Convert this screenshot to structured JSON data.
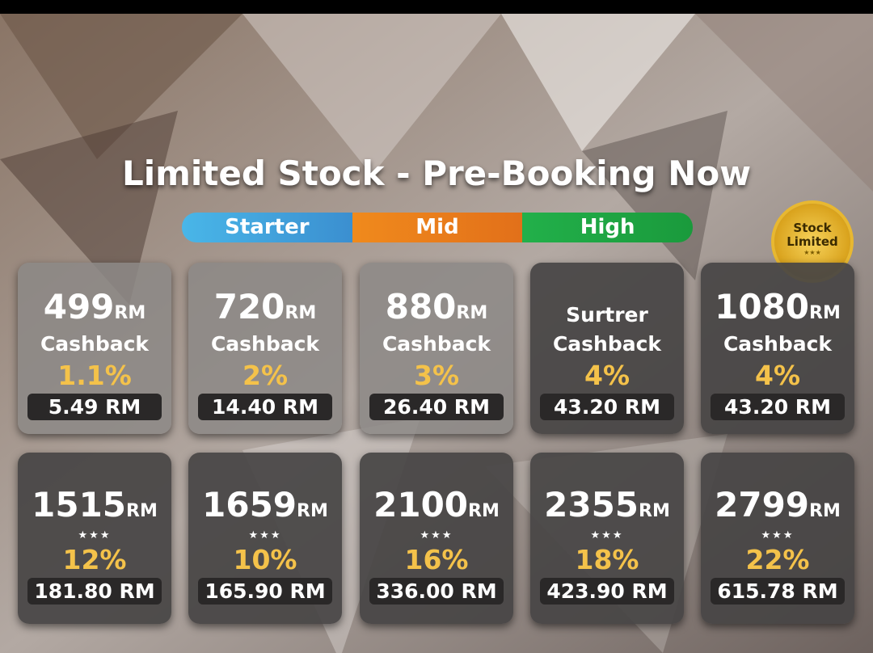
{
  "title": "Limited Stock - Pre-Booking Now",
  "tiers": [
    "Starter",
    "Mid",
    "High"
  ],
  "badge": {
    "lines": [
      "Stock",
      "Limited"
    ],
    "stars": "★★★"
  },
  "cards": [
    {
      "price": "499",
      "unit": "RM",
      "label": "Cashback",
      "percent": "1.1%",
      "cashback": "5.49 RM"
    },
    {
      "price": "720",
      "unit": "RM",
      "label": "Cashback",
      "percent": "2%",
      "cashback": "14.40 RM"
    },
    {
      "price": "880",
      "unit": "RM",
      "label": "Cashback",
      "percent": "3%",
      "cashback": "26.40 RM"
    },
    {
      "heading": "Surtrer",
      "label": "Cashback",
      "percent": "4%",
      "cashback": "43.20 RM"
    },
    {
      "price": "1080",
      "unit": "RM",
      "label": "Cashback",
      "percent": "4%",
      "cashback": "43.20 RM"
    },
    {
      "price": "1515",
      "unit": "RM",
      "stars": "★★★",
      "percent": "12%",
      "cashback": "181.80 RM"
    },
    {
      "price": "1659",
      "unit": "RM",
      "stars": "★★★",
      "percent": "10%",
      "cashback": "165.90 RM"
    },
    {
      "price": "2100",
      "unit": "RM",
      "stars": "★★★",
      "percent": "16%",
      "cashback": "336.00 RM"
    },
    {
      "price": "2355",
      "unit": "RM",
      "stars": "★★★",
      "percent": "18%",
      "cashback": "423.90 RM"
    },
    {
      "price": "2799",
      "unit": "RM",
      "stars": "★★★",
      "percent": "22%",
      "cashback": "615.78 RM"
    }
  ]
}
